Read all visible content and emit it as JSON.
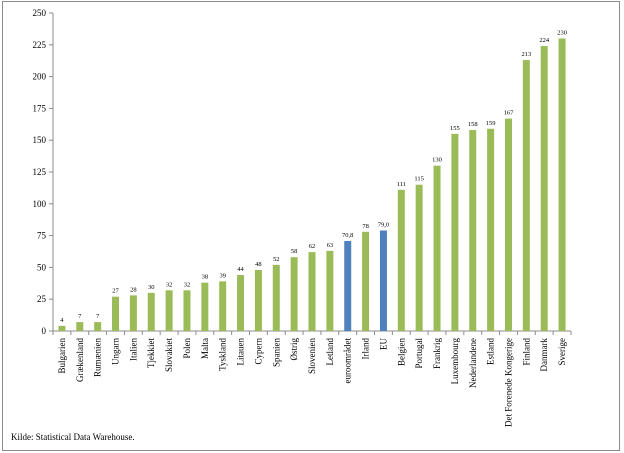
{
  "chart_data": {
    "type": "bar",
    "categories": [
      "Bulgarien",
      "Grækenland",
      "Rumænien",
      "Ungarn",
      "Italien",
      "Tjekkiet",
      "Slovakiet",
      "Polen",
      "Malta",
      "Tyskland",
      "Litauen",
      "Cypern",
      "Spanien",
      "Østrig",
      "Slovenien",
      "Letland",
      "euroområdet",
      "Irland",
      "EU",
      "Belgien",
      "Portugal",
      "Frankrig",
      "Luxembourg",
      "Nederlandene",
      "Estland",
      "Det Forenede Kongerige",
      "Finland",
      "Danmark",
      "Sverige"
    ],
    "values": [
      4,
      7,
      7,
      27,
      28,
      30,
      32,
      32,
      38,
      39,
      44,
      48,
      52,
      58,
      62,
      63,
      70.8,
      78,
      79,
      111,
      115,
      130,
      155,
      158,
      159,
      167,
      213,
      224,
      230
    ],
    "data_labels": [
      "4",
      "7",
      "7",
      "27",
      "28",
      "30",
      "32",
      "32",
      "38",
      "39",
      "44",
      "48",
      "52",
      "58",
      "62",
      "63",
      "70,8",
      "78",
      "79,0",
      "111",
      "115",
      "130",
      "155",
      "158",
      "159",
      "167",
      "213",
      "224",
      "230"
    ],
    "highlighted": [
      "euroområdet",
      "EU"
    ],
    "colors": {
      "default": "#9bbb59",
      "highlight": "#4f81bd"
    },
    "yticks": [
      0,
      25,
      50,
      75,
      100,
      125,
      150,
      175,
      200,
      225,
      250
    ],
    "ylim": [
      0,
      250
    ],
    "grid": false,
    "title": "",
    "xlabel": "",
    "ylabel": ""
  },
  "source_text": "Kilde: Statistical Data Warehouse."
}
